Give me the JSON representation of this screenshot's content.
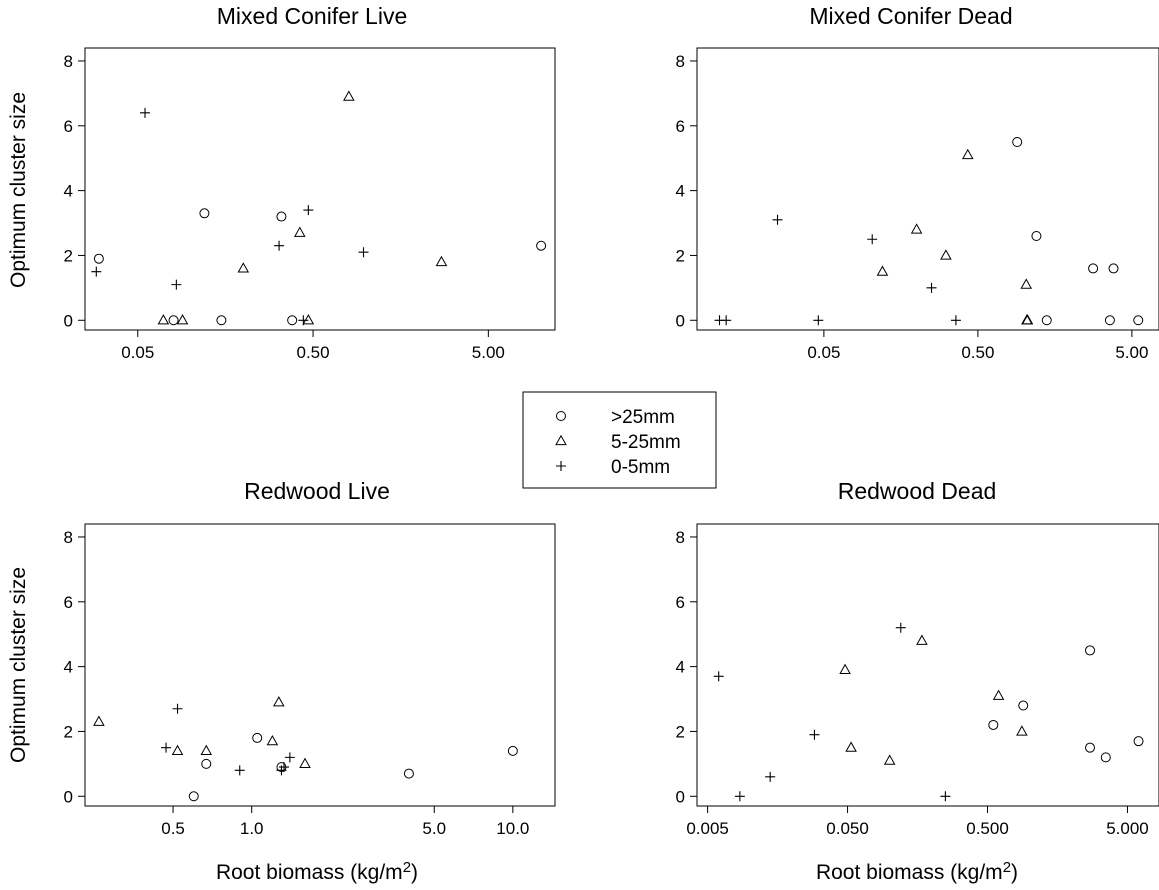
{
  "legend": {
    "entries": [
      {
        "label": ">25mm",
        "marker": "circle"
      },
      {
        "label": "5-25mm",
        "marker": "triangle"
      },
      {
        "label": "0-5mm",
        "marker": "plus"
      }
    ]
  },
  "chart_data": [
    {
      "type": "scatter",
      "title": "Mixed Conifer Live",
      "xlabel": "",
      "ylabel": "Optimum cluster size",
      "x_scale": "log",
      "xlim": [
        0.025,
        12
      ],
      "ylim": [
        -0.3,
        8.4
      ],
      "x_ticks": [
        0.05,
        0.5,
        5.0
      ],
      "x_tick_labels": [
        "0.05",
        "0.50",
        "5.00"
      ],
      "y_ticks": [
        0,
        2,
        4,
        6,
        8
      ],
      "y_tick_labels": [
        "0",
        "2",
        "4",
        "6",
        "8"
      ],
      "grid": false,
      "series": [
        {
          "name": ">25mm",
          "marker": "circle",
          "points": [
            [
              0.03,
              1.9
            ],
            [
              0.08,
              0.0
            ],
            [
              0.12,
              3.3
            ],
            [
              0.15,
              0.0
            ],
            [
              0.33,
              3.2
            ],
            [
              0.38,
              0.0
            ],
            [
              10.0,
              2.3
            ]
          ]
        },
        {
          "name": "5-25mm",
          "marker": "triangle",
          "points": [
            [
              0.07,
              0.0
            ],
            [
              0.09,
              0.0
            ],
            [
              0.2,
              1.6
            ],
            [
              0.42,
              2.7
            ],
            [
              0.47,
              0.0
            ],
            [
              0.8,
              6.9
            ],
            [
              2.7,
              1.8
            ]
          ]
        },
        {
          "name": "0-5mm",
          "marker": "plus",
          "points": [
            [
              0.029,
              1.5
            ],
            [
              0.055,
              6.4
            ],
            [
              0.083,
              1.1
            ],
            [
              0.32,
              2.3
            ],
            [
              0.44,
              0.0
            ],
            [
              0.47,
              3.4
            ],
            [
              0.97,
              2.1
            ]
          ]
        }
      ]
    },
    {
      "type": "scatter",
      "title": "Mixed Conifer Dead",
      "xlabel": "",
      "ylabel": "",
      "x_scale": "log",
      "xlim": [
        0.0075,
        7.5
      ],
      "ylim": [
        -0.3,
        8.4
      ],
      "x_ticks": [
        0.05,
        0.5,
        5.0
      ],
      "x_tick_labels": [
        "0.05",
        "0.50",
        "5.00"
      ],
      "y_ticks": [
        0,
        2,
        4,
        6,
        8
      ],
      "y_tick_labels": [
        "0",
        "2",
        "4",
        "6",
        "8"
      ],
      "grid": false,
      "series": [
        {
          "name": ">25mm",
          "marker": "circle",
          "points": [
            [
              0.9,
              5.5
            ],
            [
              1.2,
              2.6
            ],
            [
              1.4,
              0.0
            ],
            [
              2.8,
              1.6
            ],
            [
              3.6,
              0.0
            ],
            [
              3.8,
              1.6
            ],
            [
              5.5,
              0.0
            ]
          ]
        },
        {
          "name": "5-25mm",
          "marker": "triangle",
          "points": [
            [
              0.12,
              1.5
            ],
            [
              0.2,
              2.8
            ],
            [
              0.31,
              2.0
            ],
            [
              0.43,
              5.1
            ],
            [
              1.03,
              1.1
            ],
            [
              1.04,
              0.0
            ],
            [
              1.05,
              0.0
            ]
          ]
        },
        {
          "name": "0-5mm",
          "marker": "plus",
          "points": [
            [
              0.0105,
              0.0
            ],
            [
              0.0116,
              0.0
            ],
            [
              0.025,
              3.1
            ],
            [
              0.046,
              0.0
            ],
            [
              0.103,
              2.5
            ],
            [
              0.25,
              1.0
            ],
            [
              0.36,
              0.0
            ]
          ]
        }
      ]
    },
    {
      "type": "scatter",
      "title": "Redwood Live",
      "xlabel": "Root biomass (kg/m2)",
      "ylabel": "Optimum cluster size",
      "x_scale": "log",
      "xlim": [
        0.23,
        14.5
      ],
      "ylim": [
        -0.3,
        8.4
      ],
      "x_ticks": [
        0.5,
        1.0,
        5.0,
        10.0
      ],
      "x_tick_labels": [
        "0.5",
        "1.0",
        "5.0",
        "10.0"
      ],
      "y_ticks": [
        0,
        2,
        4,
        6,
        8
      ],
      "y_tick_labels": [
        "0",
        "2",
        "4",
        "6",
        "8"
      ],
      "grid": false,
      "series": [
        {
          "name": ">25mm",
          "marker": "circle",
          "points": [
            [
              0.6,
              0.0
            ],
            [
              0.67,
              1.0
            ],
            [
              1.05,
              1.8
            ],
            [
              1.3,
              0.9
            ],
            [
              4.0,
              0.7
            ],
            [
              10.0,
              1.4
            ]
          ]
        },
        {
          "name": "5-25mm",
          "marker": "triangle",
          "points": [
            [
              0.26,
              2.3
            ],
            [
              0.52,
              1.4
            ],
            [
              0.67,
              1.4
            ],
            [
              1.2,
              1.7
            ],
            [
              1.27,
              2.9
            ],
            [
              1.6,
              1.0
            ]
          ]
        },
        {
          "name": "0-5mm",
          "marker": "plus",
          "points": [
            [
              0.47,
              1.5
            ],
            [
              0.52,
              2.7
            ],
            [
              0.9,
              0.8
            ],
            [
              1.3,
              0.8
            ],
            [
              1.33,
              0.9
            ],
            [
              1.4,
              1.2
            ]
          ]
        }
      ]
    },
    {
      "type": "scatter",
      "title": "Redwood Dead",
      "xlabel": "Root biomass (kg/m2)",
      "ylabel": "",
      "x_scale": "log",
      "xlim": [
        0.0042,
        8.4
      ],
      "ylim": [
        -0.3,
        8.4
      ],
      "x_ticks": [
        0.005,
        0.05,
        0.5,
        5.0
      ],
      "x_tick_labels": [
        "0.005",
        "0.050",
        "0.500",
        "5.000"
      ],
      "y_ticks": [
        0,
        2,
        4,
        6,
        8
      ],
      "y_tick_labels": [
        "0",
        "2",
        "4",
        "6",
        "8"
      ],
      "grid": false,
      "series": [
        {
          "name": ">25mm",
          "marker": "circle",
          "points": [
            [
              0.55,
              2.2
            ],
            [
              0.9,
              2.8
            ],
            [
              2.7,
              4.5
            ],
            [
              2.7,
              1.5
            ],
            [
              3.5,
              1.2
            ],
            [
              6.0,
              1.7
            ]
          ]
        },
        {
          "name": "5-25mm",
          "marker": "triangle",
          "points": [
            [
              0.048,
              3.9
            ],
            [
              0.053,
              1.5
            ],
            [
              0.1,
              1.1
            ],
            [
              0.17,
              4.8
            ],
            [
              0.6,
              3.1
            ],
            [
              0.88,
              2.0
            ]
          ]
        },
        {
          "name": "0-5mm",
          "marker": "plus",
          "points": [
            [
              0.006,
              3.7
            ],
            [
              0.0085,
              0.0
            ],
            [
              0.014,
              0.6
            ],
            [
              0.029,
              1.9
            ],
            [
              0.12,
              5.2
            ],
            [
              0.25,
              0.0
            ]
          ]
        }
      ]
    }
  ]
}
